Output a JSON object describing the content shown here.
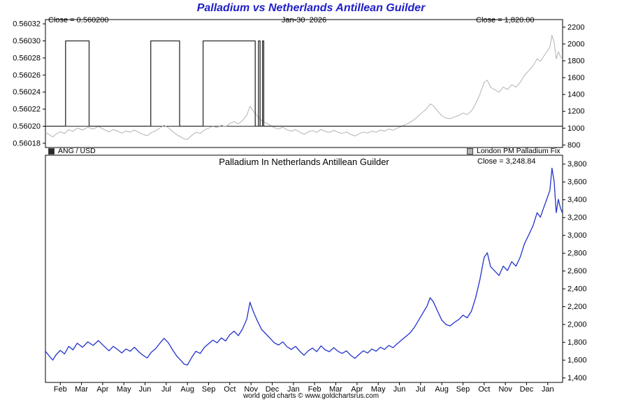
{
  "footer": "world gold charts © www.goldchartsrus.com",
  "colors": {
    "title": "#1f1fc8",
    "black": "#2b2b2b",
    "gray": "#b3b3b3",
    "blue": "#2233cc",
    "frame": "#000000"
  },
  "chart_data": [
    {
      "id": "top",
      "type": "line",
      "title": "Palladium vs Netherlands Antillean Guilder",
      "annotations": {
        "left": "Close = 0.560200",
        "center": "Jan-30  2026",
        "right": "Close = 1,820.00"
      },
      "legend": [
        {
          "label": "ANG / USD",
          "color_key": "black"
        },
        {
          "label": "London PM Palladium Fix",
          "color_key": "gray"
        }
      ],
      "x_range": [
        0,
        24.4
      ],
      "x_tick_labels": [
        "Feb",
        "Mar",
        "Apr",
        "May",
        "Jun",
        "Jul",
        "Aug",
        "Sep",
        "Oct",
        "Nov",
        "Dec",
        "Jan",
        "Feb",
        "Mar",
        "Apr",
        "May",
        "Jun",
        "Jul",
        "Aug",
        "Sep",
        "Oct",
        "Nov",
        "Dec",
        "Jan"
      ],
      "left_axis": {
        "min": 0.560175,
        "max": 0.560325,
        "tick_values": [
          0.56018,
          0.5602,
          0.56022,
          0.56024,
          0.56026,
          0.56028,
          0.5603,
          0.56032
        ],
        "tick_labels": [
          "0.56018",
          "0.56020",
          "0.56022",
          "0.56024",
          "0.56026",
          "0.56028",
          "0.56030",
          "0.56032"
        ]
      },
      "right_axis": {
        "min": 770,
        "max": 2290,
        "tick_values": [
          800,
          1000,
          1200,
          1400,
          1600,
          1800,
          2000,
          2200
        ],
        "tick_labels": [
          "800",
          "1000",
          "1200",
          "1400",
          "1600",
          "1800",
          "2000",
          "2200"
        ]
      },
      "ref_line": {
        "axis": "left",
        "value": 0.5602
      },
      "series": [
        {
          "name": "London PM Palladium Fix",
          "axis": "right",
          "color_key": "gray",
          "close": 1820.0,
          "x": [
            0.0,
            0.2,
            0.35,
            0.5,
            0.7,
            0.9,
            1.1,
            1.3,
            1.5,
            1.75,
            2.0,
            2.25,
            2.5,
            2.75,
            3.0,
            3.2,
            3.4,
            3.6,
            3.8,
            4.0,
            4.2,
            4.4,
            4.6,
            4.8,
            5.0,
            5.2,
            5.4,
            5.6,
            5.8,
            6.0,
            6.2,
            6.4,
            6.55,
            6.7,
            6.9,
            7.1,
            7.3,
            7.5,
            7.7,
            7.9,
            8.1,
            8.3,
            8.5,
            8.7,
            8.9,
            9.1,
            9.3,
            9.5,
            9.65,
            9.8,
            10.0,
            10.2,
            10.4,
            10.6,
            10.8,
            11.0,
            11.2,
            11.4,
            11.6,
            11.8,
            12.0,
            12.2,
            12.4,
            12.6,
            12.8,
            13.0,
            13.2,
            13.4,
            13.6,
            13.8,
            14.0,
            14.2,
            14.4,
            14.6,
            14.8,
            15.0,
            15.2,
            15.4,
            15.6,
            15.8,
            16.0,
            16.2,
            16.4,
            16.6,
            16.8,
            17.0,
            17.2,
            17.4,
            17.6,
            17.8,
            18.0,
            18.15,
            18.3,
            18.5,
            18.7,
            18.9,
            19.1,
            19.3,
            19.5,
            19.7,
            19.9,
            20.1,
            20.3,
            20.5,
            20.7,
            20.85,
            21.0,
            21.2,
            21.4,
            21.6,
            21.8,
            22.0,
            22.2,
            22.4,
            22.6,
            22.8,
            23.0,
            23.2,
            23.35,
            23.5,
            23.65,
            23.8,
            23.9,
            24.0,
            24.1,
            24.2,
            24.3,
            24.4
          ],
          "y": [
            952,
            919,
            896,
            930,
            958,
            936,
            983,
            961,
            1003,
            978,
            1011,
            989,
            1020,
            986,
            955,
            983,
            964,
            941,
            966,
            952,
            978,
            950,
            927,
            910,
            947,
            969,
            1003,
            1034,
            1006,
            961,
            922,
            894,
            871,
            866,
            913,
            952,
            938,
            978,
            1000,
            1022,
            1006,
            1036,
            1017,
            1056,
            1078,
            1050,
            1092,
            1154,
            1260,
            1204,
            1143,
            1090,
            1062,
            1034,
            1006,
            992,
            1011,
            980,
            964,
            983,
            952,
            927,
            955,
            972,
            950,
            986,
            961,
            950,
            975,
            952,
            938,
            955,
            927,
            908,
            933,
            955,
            941,
            966,
            952,
            978,
            964,
            989,
            975,
            1000,
            1022,
            1045,
            1067,
            1101,
            1146,
            1190,
            1235,
            1288,
            1263,
            1204,
            1148,
            1120,
            1112,
            1134,
            1151,
            1179,
            1162,
            1204,
            1291,
            1403,
            1543,
            1571,
            1485,
            1457,
            1428,
            1487,
            1459,
            1515,
            1487,
            1543,
            1627,
            1683,
            1739,
            1823,
            1795,
            1851,
            1907,
            1963,
            2103,
            2020,
            1823,
            1907,
            1851,
            1820
          ]
        },
        {
          "name": "ANG / USD",
          "axis": "left",
          "color_key": "black",
          "close": 0.5602,
          "x": [
            0,
            0.95,
            0.95,
            2.06,
            2.06,
            4.97,
            4.97,
            6.33,
            6.33,
            7.44,
            7.44,
            9.9,
            9.9,
            10.05,
            10.05,
            10.13,
            10.13,
            10.24,
            10.24,
            10.3,
            10.3,
            24.4
          ],
          "y": [
            0.5602,
            0.5602,
            0.5603,
            0.5603,
            0.5602,
            0.5602,
            0.5603,
            0.5603,
            0.5602,
            0.5602,
            0.5603,
            0.5603,
            0.5602,
            0.5602,
            0.5603,
            0.5603,
            0.5602,
            0.5602,
            0.5603,
            0.5603,
            0.5602,
            0.5602
          ]
        }
      ]
    },
    {
      "id": "bottom",
      "type": "line",
      "title": "Palladium In Netherlands Antillean Guilder",
      "close_label": "Close = 3,248.84",
      "x_range": [
        0,
        24.4
      ],
      "x_tick_labels": [
        "Feb",
        "Mar",
        "Apr",
        "May",
        "Jun",
        "Jul",
        "Aug",
        "Sep",
        "Oct",
        "Nov",
        "Dec",
        "Jan",
        "Feb",
        "Mar",
        "Apr",
        "May",
        "Jun",
        "Jul",
        "Aug",
        "Sep",
        "Oct",
        "Nov",
        "Dec",
        "Jan"
      ],
      "right_axis": {
        "min": 1350,
        "max": 3900,
        "tick_values": [
          1400,
          1600,
          1800,
          2000,
          2200,
          2400,
          2600,
          2800,
          3000,
          3200,
          3400,
          3600,
          3800
        ],
        "tick_labels": [
          "1,400",
          "1,600",
          "1,800",
          "2,000",
          "2,200",
          "2,400",
          "2,600",
          "2,800",
          "3,000",
          "3,200",
          "3,400",
          "3,600",
          "3,800"
        ]
      },
      "series": [
        {
          "name": "Palladium in Netherlands Antillean Guilder",
          "axis": "right",
          "color_key": "blue",
          "close": 3248.84,
          "x": [
            0.0,
            0.2,
            0.35,
            0.5,
            0.7,
            0.9,
            1.1,
            1.3,
            1.5,
            1.75,
            2.0,
            2.25,
            2.5,
            2.75,
            3.0,
            3.2,
            3.4,
            3.6,
            3.8,
            4.0,
            4.2,
            4.4,
            4.6,
            4.8,
            5.0,
            5.2,
            5.4,
            5.6,
            5.8,
            6.0,
            6.2,
            6.4,
            6.55,
            6.7,
            6.9,
            7.1,
            7.3,
            7.5,
            7.7,
            7.9,
            8.1,
            8.3,
            8.5,
            8.7,
            8.9,
            9.1,
            9.3,
            9.5,
            9.65,
            9.8,
            10.0,
            10.2,
            10.4,
            10.6,
            10.8,
            11.0,
            11.2,
            11.4,
            11.6,
            11.8,
            12.0,
            12.2,
            12.4,
            12.6,
            12.8,
            13.0,
            13.2,
            13.4,
            13.6,
            13.8,
            14.0,
            14.2,
            14.4,
            14.6,
            14.8,
            15.0,
            15.2,
            15.4,
            15.6,
            15.8,
            16.0,
            16.2,
            16.4,
            16.6,
            16.8,
            17.0,
            17.2,
            17.4,
            17.6,
            17.8,
            18.0,
            18.15,
            18.3,
            18.5,
            18.7,
            18.9,
            19.1,
            19.3,
            19.5,
            19.7,
            19.9,
            20.1,
            20.3,
            20.5,
            20.7,
            20.85,
            21.0,
            21.2,
            21.4,
            21.6,
            21.8,
            22.0,
            22.2,
            22.4,
            22.6,
            22.8,
            23.0,
            23.2,
            23.35,
            23.5,
            23.65,
            23.8,
            23.9,
            24.0,
            24.1,
            24.2,
            24.3,
            24.4
          ],
          "y": [
            1700,
            1640,
            1600,
            1660,
            1710,
            1670,
            1755,
            1715,
            1790,
            1745,
            1805,
            1765,
            1820,
            1760,
            1705,
            1755,
            1720,
            1680,
            1725,
            1700,
            1745,
            1695,
            1655,
            1625,
            1690,
            1730,
            1790,
            1845,
            1795,
            1715,
            1645,
            1595,
            1555,
            1545,
            1630,
            1700,
            1675,
            1745,
            1785,
            1825,
            1795,
            1850,
            1815,
            1885,
            1925,
            1875,
            1950,
            2060,
            2250,
            2150,
            2040,
            1945,
            1895,
            1845,
            1795,
            1770,
            1805,
            1750,
            1720,
            1755,
            1700,
            1655,
            1705,
            1735,
            1695,
            1760,
            1715,
            1695,
            1740,
            1700,
            1675,
            1705,
            1655,
            1620,
            1665,
            1705,
            1680,
            1725,
            1700,
            1745,
            1720,
            1765,
            1740,
            1785,
            1825,
            1865,
            1905,
            1965,
            2045,
            2125,
            2205,
            2300,
            2255,
            2150,
            2050,
            2000,
            1985,
            2025,
            2055,
            2105,
            2075,
            2150,
            2305,
            2505,
            2755,
            2805,
            2650,
            2600,
            2550,
            2655,
            2605,
            2705,
            2655,
            2755,
            2905,
            3005,
            3105,
            3255,
            3205,
            3305,
            3405,
            3505,
            3755,
            3605,
            3255,
            3405,
            3305,
            3249
          ]
        }
      ]
    }
  ]
}
